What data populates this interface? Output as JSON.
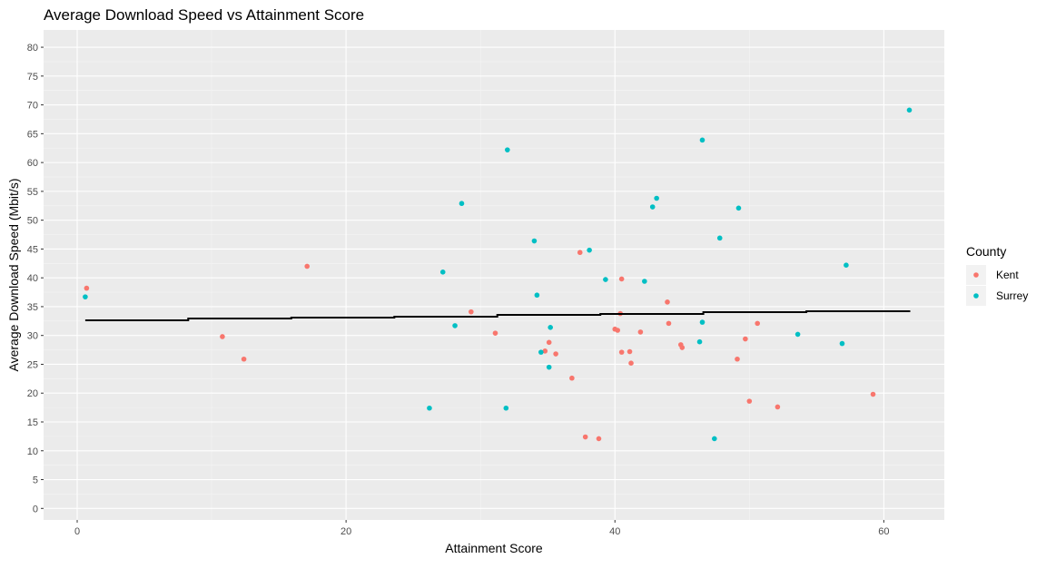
{
  "chart_data": {
    "type": "scatter",
    "title": "Average Download Speed vs Attainment Score",
    "xlabel": "Attainment Score",
    "ylabel": "Average Download Speed (Mbit/s)",
    "xlim": [
      -2.5,
      64.5
    ],
    "ylim": [
      -2,
      83
    ],
    "x_ticks": [
      0,
      20,
      40,
      60
    ],
    "y_ticks": [
      0,
      5,
      10,
      15,
      20,
      25,
      30,
      35,
      40,
      45,
      50,
      55,
      60,
      65,
      70,
      75,
      80
    ],
    "grid": true,
    "legend": {
      "title": "County",
      "position": "right"
    },
    "series": [
      {
        "name": "Kent",
        "color": "#F8766D",
        "points": [
          [
            0.7,
            38.2
          ],
          [
            10.8,
            29.8
          ],
          [
            12.4,
            25.9
          ],
          [
            17.1,
            42.0
          ],
          [
            29.3,
            34.1
          ],
          [
            31.1,
            30.4
          ],
          [
            34.8,
            27.3
          ],
          [
            35.1,
            28.8
          ],
          [
            35.6,
            26.8
          ],
          [
            36.8,
            22.6
          ],
          [
            37.4,
            44.4
          ],
          [
            37.8,
            12.4
          ],
          [
            38.8,
            12.1
          ],
          [
            40.0,
            31.1
          ],
          [
            40.2,
            30.9
          ],
          [
            40.4,
            33.8
          ],
          [
            40.5,
            27.1
          ],
          [
            40.5,
            39.8
          ],
          [
            41.1,
            27.2
          ],
          [
            41.2,
            25.2
          ],
          [
            41.9,
            30.6
          ],
          [
            43.9,
            35.8
          ],
          [
            44.0,
            32.1
          ],
          [
            44.9,
            28.4
          ],
          [
            45.0,
            27.9
          ],
          [
            49.1,
            25.9
          ],
          [
            49.7,
            29.4
          ],
          [
            50.0,
            18.6
          ],
          [
            50.6,
            32.1
          ],
          [
            52.1,
            17.6
          ],
          [
            59.2,
            19.8
          ]
        ]
      },
      {
        "name": "Surrey",
        "color": "#00BFC4",
        "points": [
          [
            0.6,
            36.7
          ],
          [
            26.2,
            17.4
          ],
          [
            27.2,
            41.0
          ],
          [
            28.1,
            31.7
          ],
          [
            28.6,
            52.9
          ],
          [
            31.9,
            17.4
          ],
          [
            32.0,
            62.2
          ],
          [
            34.0,
            46.4
          ],
          [
            34.2,
            37.0
          ],
          [
            34.5,
            27.1
          ],
          [
            35.1,
            24.5
          ],
          [
            35.2,
            31.4
          ],
          [
            38.1,
            44.8
          ],
          [
            39.3,
            39.7
          ],
          [
            42.2,
            39.4
          ],
          [
            42.8,
            52.3
          ],
          [
            43.1,
            53.8
          ],
          [
            46.3,
            28.9
          ],
          [
            46.5,
            63.9
          ],
          [
            46.5,
            32.3
          ],
          [
            47.4,
            12.1
          ],
          [
            47.8,
            46.9
          ],
          [
            49.2,
            52.1
          ],
          [
            53.6,
            30.2
          ],
          [
            56.9,
            28.6
          ],
          [
            57.2,
            42.2
          ],
          [
            61.9,
            69.1
          ]
        ]
      }
    ],
    "trend_line": {
      "color": "#000000",
      "x_range": [
        0.6,
        61.9
      ],
      "y_range": [
        32.7,
        34.4
      ]
    }
  }
}
